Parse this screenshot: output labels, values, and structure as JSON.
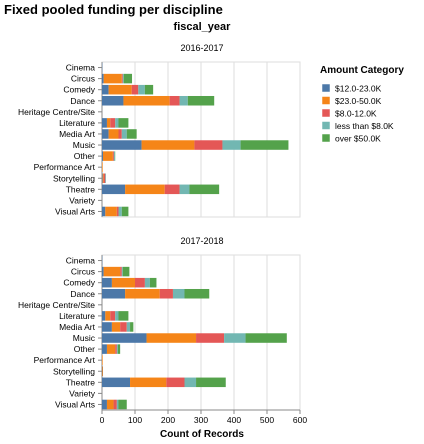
{
  "chart_data": {
    "type": "bar",
    "orientation": "horizontal",
    "stacked": true,
    "title": "Fixed pooled funding per discipline",
    "facet_header": "fiscal_year",
    "xlabel": "Count of Records",
    "x_ticks": [
      "0",
      "100",
      "200",
      "300",
      "400",
      "500",
      "600"
    ],
    "xlim": [
      0,
      600
    ],
    "grid": true,
    "legend": {
      "title": "Amount Category",
      "placement": "top-right"
    },
    "categories": [
      "Cinema",
      "Circus",
      "Comedy",
      "Dance",
      "Heritage Centre/Site",
      "Literature",
      "Media Art",
      "Music",
      "Other",
      "Performance Art",
      "Storytelling",
      "Theatre",
      "Variety",
      "Visual Arts"
    ],
    "series_order": [
      "$12.0-23.0K",
      "$23.0-50.0K",
      "$8.0-12.0K",
      "less than $8.0K",
      "over $50.0K"
    ],
    "colors": {
      "$12.0-23.0K": "#4c78a8",
      "$23.0-50.0K": "#f58518",
      "$8.0-12.0K": "#e45756",
      "less than $8.0K": "#72b7b2",
      "over $50.0K": "#54a24b"
    },
    "facets": [
      {
        "fiscal_year": "2016-2017",
        "series": [
          {
            "name": "$12.0-23.0K",
            "values": [
              1,
              5,
              20,
              65,
              0,
              15,
              20,
              120,
              3,
              0,
              2,
              70,
              0,
              10
            ]
          },
          {
            "name": "$23.0-50.0K",
            "values": [
              0,
              55,
              70,
              140,
              0,
              10,
              30,
              160,
              30,
              2,
              3,
              120,
              0,
              35
            ]
          },
          {
            "name": "$8.0-12.0K",
            "values": [
              0,
              3,
              20,
              30,
              0,
              15,
              10,
              85,
              3,
              0,
              5,
              45,
              0,
              5
            ]
          },
          {
            "name": "less than $8.0K",
            "values": [
              0,
              3,
              20,
              25,
              0,
              10,
              15,
              55,
              3,
              0,
              2,
              30,
              0,
              10
            ]
          },
          {
            "name": "over $50.0K",
            "values": [
              0,
              25,
              25,
              80,
              0,
              30,
              30,
              145,
              1,
              0,
              0,
              90,
              0,
              20
            ]
          }
        ]
      },
      {
        "fiscal_year": "2017-2018",
        "series": [
          {
            "name": "$12.0-23.0K",
            "values": [
              1,
              5,
              30,
              70,
              0,
              10,
              30,
              135,
              15,
              0,
              1,
              85,
              0,
              15
            ]
          },
          {
            "name": "$23.0-50.0K",
            "values": [
              0,
              50,
              70,
              105,
              0,
              15,
              25,
              150,
              25,
              2,
              2,
              110,
              0,
              20
            ]
          },
          {
            "name": "$8.0-12.0K",
            "values": [
              0,
              5,
              30,
              40,
              0,
              15,
              20,
              85,
              5,
              0,
              0,
              55,
              0,
              10
            ]
          },
          {
            "name": "less than $8.0K",
            "values": [
              0,
              3,
              15,
              35,
              0,
              10,
              10,
              65,
              3,
              0,
              0,
              35,
              0,
              5
            ]
          },
          {
            "name": "over $50.0K",
            "values": [
              0,
              20,
              20,
              75,
              0,
              30,
              10,
              125,
              7,
              0,
              0,
              90,
              0,
              25
            ]
          }
        ]
      }
    ]
  }
}
